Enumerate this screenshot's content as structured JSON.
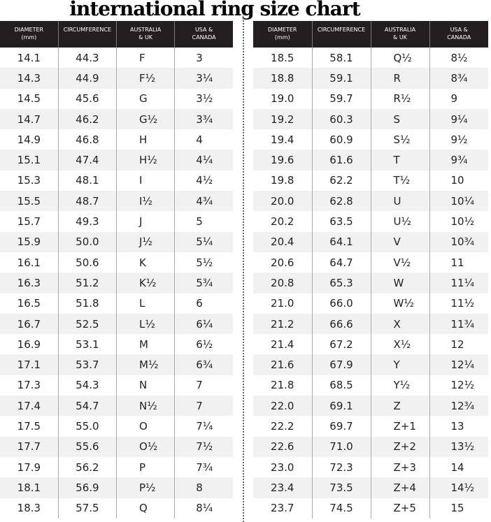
{
  "title": "international ring size chart",
  "headers": [
    "DIAMETER\n(mm)",
    "CIRCUMFERENCE",
    "AUSTRALIA\n& UK",
    "USA &\nCANADA"
  ],
  "left_rows": [
    [
      "14.1",
      "44.3",
      "F",
      "3"
    ],
    [
      "14.3",
      "44.9",
      "F½",
      "3¼"
    ],
    [
      "14.5",
      "45.6",
      "G",
      "3½"
    ],
    [
      "14.7",
      "46.2",
      "G½",
      "3¾"
    ],
    [
      "14.9",
      "46.8",
      "H",
      "4"
    ],
    [
      "15.1",
      "47.4",
      "H½",
      "4¼"
    ],
    [
      "15.3",
      "48.1",
      "I",
      "4½"
    ],
    [
      "15.5",
      "48.7",
      "I½",
      "4¾"
    ],
    [
      "15.7",
      "49.3",
      "J",
      "5"
    ],
    [
      "15.9",
      "50.0",
      "J½",
      "5¼"
    ],
    [
      "16.1",
      "50.6",
      "K",
      "5½"
    ],
    [
      "16.3",
      "51.2",
      "K½",
      "5¾"
    ],
    [
      "16.5",
      "51.8",
      "L",
      "6"
    ],
    [
      "16.7",
      "52.5",
      "L½",
      "6¼"
    ],
    [
      "16.9",
      "53.1",
      "M",
      "6½"
    ],
    [
      "17.1",
      "53.7",
      "M½",
      "6¾"
    ],
    [
      "17.3",
      "54.3",
      "N",
      "7"
    ],
    [
      "17.4",
      "54.7",
      "N½",
      "7"
    ],
    [
      "17.5",
      "55.0",
      "O",
      "7¼"
    ],
    [
      "17.7",
      "55.6",
      "O½",
      "7½"
    ],
    [
      "17.9",
      "56.2",
      "P",
      "7¾"
    ],
    [
      "18.1",
      "56.9",
      "P½",
      "8"
    ],
    [
      "18.3",
      "57.5",
      "Q",
      "8¼"
    ]
  ],
  "right_rows": [
    [
      "18.5",
      "58.1",
      "Q½",
      "8½"
    ],
    [
      "18.8",
      "59.1",
      "R",
      "8¾"
    ],
    [
      "19.0",
      "59.7",
      "R½",
      "9"
    ],
    [
      "19.2",
      "60.3",
      "S",
      "9¼"
    ],
    [
      "19.4",
      "60.9",
      "S½",
      "9½"
    ],
    [
      "19.6",
      "61.6",
      "T",
      "9¾"
    ],
    [
      "19.8",
      "62.2",
      "T½",
      "10"
    ],
    [
      "20.0",
      "62.8",
      "U",
      "10¼"
    ],
    [
      "20.2",
      "63.5",
      "U½",
      "10½"
    ],
    [
      "20.4",
      "64.1",
      "V",
      "10¾"
    ],
    [
      "20.6",
      "64.7",
      "V½",
      "11"
    ],
    [
      "20.8",
      "65.3",
      "W",
      "11¼"
    ],
    [
      "21.0",
      "66.0",
      "W½",
      "11½"
    ],
    [
      "21.2",
      "66.6",
      "X",
      "11¾"
    ],
    [
      "21.4",
      "67.2",
      "X½",
      "12"
    ],
    [
      "21.6",
      "67.9",
      "Y",
      "12¼"
    ],
    [
      "21.8",
      "68.5",
      "Y½",
      "12½"
    ],
    [
      "22.0",
      "69.1",
      "Z",
      "12¾"
    ],
    [
      "22.2",
      "69.7",
      "Z+1",
      "13"
    ],
    [
      "22.6",
      "71.0",
      "Z+2",
      "13½"
    ],
    [
      "23.0",
      "72.3",
      "Z+3",
      "14"
    ],
    [
      "23.4",
      "73.5",
      "Z+4",
      "14½"
    ],
    [
      "23.7",
      "74.5",
      "Z+5",
      "15"
    ]
  ],
  "colors": {
    "header_bg": "#231f20",
    "header_text": "#ffffff",
    "stripe": "#f1f1f1"
  }
}
